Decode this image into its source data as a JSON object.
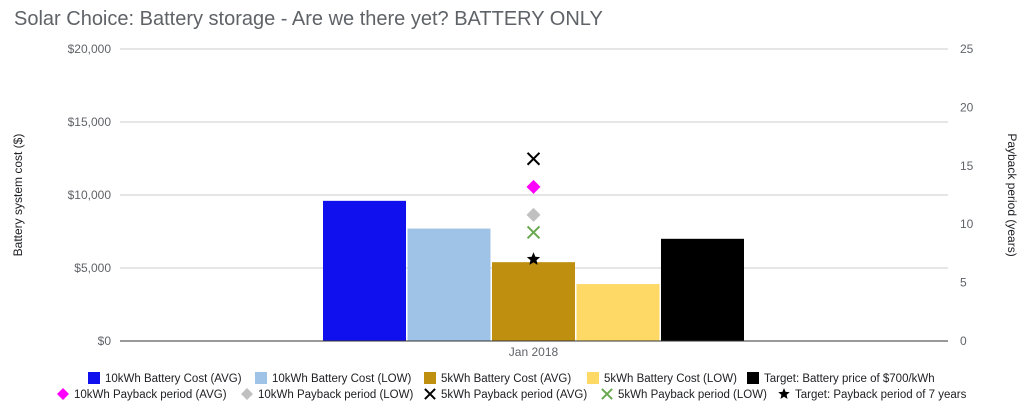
{
  "chart_data": {
    "type": "bar",
    "title": "Solar Choice: Battery storage - Are we there yet? BATTERY ONLY",
    "categories": [
      "Jan 2018"
    ],
    "ylabel": "Battery system cost ($)",
    "y2label": "Payback period (years)",
    "ylim": [
      0,
      20000
    ],
    "y2lim": [
      0,
      25
    ],
    "y_ticks": [
      "$0",
      "$5,000",
      "$10,000",
      "$15,000",
      "$20,000"
    ],
    "y2_ticks": [
      "0",
      "5",
      "10",
      "15",
      "20",
      "25"
    ],
    "grid": true,
    "legend_position": "bottom",
    "bar_series": [
      {
        "name": "10kWh Battery Cost (AVG)",
        "values": [
          9600
        ],
        "color": "#1010ee"
      },
      {
        "name": "10kWh Battery Cost (LOW)",
        "values": [
          7700
        ],
        "color": "#9fc3e6"
      },
      {
        "name": "5kWh Battery Cost (AVG)",
        "values": [
          5400
        ],
        "color": "#bf900f"
      },
      {
        "name": "5kWh Battery Cost (LOW)",
        "values": [
          3900
        ],
        "color": "#ffd966"
      },
      {
        "name": "Target: Battery price of $700/kWh",
        "values": [
          7000
        ],
        "color": "#000000"
      }
    ],
    "marker_series": [
      {
        "name": "10kWh Payback period (AVG)",
        "values": [
          13.2
        ],
        "marker": "diamond",
        "color": "#ff00ff"
      },
      {
        "name": "10kWh Payback period (LOW)",
        "values": [
          10.8
        ],
        "marker": "diamond",
        "color": "#c0c0c0"
      },
      {
        "name": "5kWh Payback period (AVG)",
        "values": [
          15.6
        ],
        "marker": "x",
        "color": "#000000"
      },
      {
        "name": "5kWh Payback period (LOW)",
        "values": [
          9.3
        ],
        "marker": "x",
        "color": "#6aa84f"
      },
      {
        "name": "Target: Payback period of 7 years",
        "values": [
          7
        ],
        "marker": "star",
        "color": "#000000"
      }
    ]
  }
}
